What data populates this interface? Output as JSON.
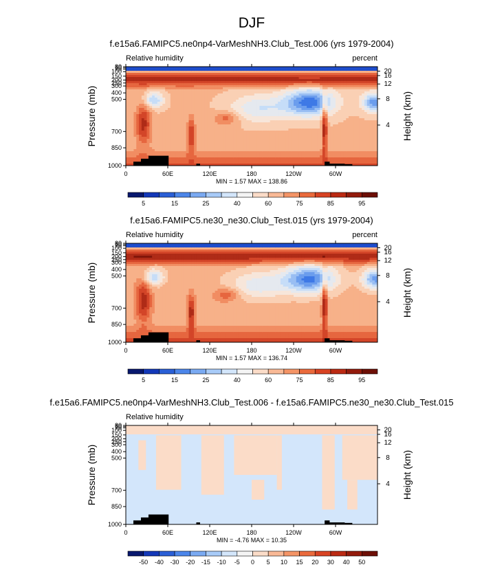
{
  "page_title": "DJF",
  "panels": [
    {
      "title": "f.e15a6.FAMIPC5.ne0np4-VarMeshNH3.Club_Test.006 (yrs 1979-2004)",
      "left_label": "Relative humidity",
      "right_label": "percent",
      "stats": "MIN =   1.57  MAX = 138.86",
      "palette": "rh"
    },
    {
      "title": "f.e15a6.FAMIPC5.ne30_ne30.Club_Test.015 (yrs 1979-2004)",
      "left_label": "Relative humidity",
      "right_label": "percent",
      "stats": "MIN =   1.57  MAX = 136.74",
      "palette": "rh"
    },
    {
      "title": "f.e15a6.FAMIPC5.ne0np4-VarMeshNH3.Club_Test.006 - f.e15a6.FAMIPC5.ne30_ne30.Club_Test.015",
      "left_label": "Relative humidity",
      "right_label": "",
      "stats": "MIN =  -4.76  MAX =  10.35",
      "palette": "diff"
    }
  ],
  "chart_data": {
    "type": "heatmap",
    "xlabel": "",
    "ylabel": "Pressure (mb)",
    "ylabel_right": "Height (km)",
    "x_ticks": [
      "0",
      "60E",
      "120E",
      "180",
      "120W",
      "60W"
    ],
    "y_ticks_pressure": [
      "30",
      "50",
      "70",
      "100",
      "150",
      "200",
      "250",
      "300",
      "400",
      "500",
      "700",
      "850",
      "1000"
    ],
    "y_ticks_height": [
      "20",
      "16",
      "12",
      "8",
      "4"
    ],
    "colorbars": {
      "rh": {
        "labels": [
          "5",
          "15",
          "25",
          "40",
          "60",
          "75",
          "85",
          "95"
        ],
        "colors": [
          "#08186e",
          "#1338b8",
          "#2a5fd6",
          "#4c86ea",
          "#7aaaf2",
          "#a8cbf8",
          "#d3e6fb",
          "#f4f4f4",
          "#fbdcc8",
          "#f9b996",
          "#f49466",
          "#ea6a3c",
          "#d84323",
          "#bb2a13",
          "#931b0c",
          "#6d0f06"
        ]
      },
      "diff": {
        "labels": [
          "-50",
          "-40",
          "-30",
          "-20",
          "-15",
          "-10",
          "-5",
          "0",
          "5",
          "10",
          "15",
          "20",
          "30",
          "40",
          "50"
        ],
        "colors": [
          "#08186e",
          "#1338b8",
          "#2a5fd6",
          "#4c86ea",
          "#7aaaf2",
          "#a8cbf8",
          "#d3e6fb",
          "#f4f4f4",
          "#fbdcc8",
          "#f9b996",
          "#f49466",
          "#ea6a3c",
          "#d84323",
          "#bb2a13",
          "#931b0c",
          "#6d0f06"
        ]
      }
    }
  }
}
